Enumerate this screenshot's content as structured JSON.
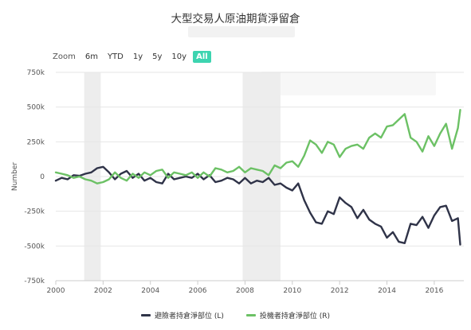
{
  "chart_data": {
    "type": "line",
    "title": "大型交易人原油期貨淨留倉",
    "xlabel": "",
    "ylabel": "Number",
    "xlim": [
      2000,
      2017.25
    ],
    "x_ticks": [
      "2000",
      "2002",
      "2004",
      "2006",
      "2008",
      "2010",
      "2012",
      "2014",
      "2016"
    ],
    "y_ticks": [
      "750k",
      "500k",
      "250k",
      "0",
      "-250k",
      "-500k",
      "-750k"
    ],
    "ylim": [
      -750000,
      750000
    ],
    "grid": true,
    "legend_position": "bottom-center",
    "shaded_periods": [
      [
        2001.2,
        2001.9
      ],
      [
        2007.9,
        2009.5
      ]
    ],
    "series": [
      {
        "name": "避險者持倉淨部位 (L)",
        "color": "#2f3348",
        "x": [
          2000,
          2000.25,
          2000.5,
          2000.75,
          2001,
          2001.25,
          2001.5,
          2001.75,
          2002,
          2002.25,
          2002.5,
          2002.75,
          2003,
          2003.25,
          2003.5,
          2003.75,
          2004,
          2004.25,
          2004.5,
          2004.75,
          2005,
          2005.25,
          2005.5,
          2005.75,
          2006,
          2006.25,
          2006.5,
          2006.75,
          2007,
          2007.25,
          2007.5,
          2007.75,
          2008,
          2008.25,
          2008.5,
          2008.75,
          2009,
          2009.25,
          2009.5,
          2009.75,
          2010,
          2010.25,
          2010.5,
          2010.75,
          2011,
          2011.25,
          2011.5,
          2011.75,
          2012,
          2012.25,
          2012.5,
          2012.75,
          2013,
          2013.25,
          2013.5,
          2013.75,
          2014,
          2014.25,
          2014.5,
          2014.75,
          2015,
          2015.25,
          2015.5,
          2015.75,
          2016,
          2016.25,
          2016.5,
          2016.75,
          2017,
          2017.1
        ],
        "values": [
          -30000,
          -10000,
          -20000,
          10000,
          5000,
          20000,
          30000,
          60000,
          70000,
          30000,
          -20000,
          20000,
          40000,
          -10000,
          20000,
          -30000,
          -10000,
          -40000,
          -50000,
          20000,
          -20000,
          -10000,
          0,
          -10000,
          20000,
          -20000,
          10000,
          -40000,
          -30000,
          -10000,
          -20000,
          -50000,
          -10000,
          -50000,
          -30000,
          -40000,
          -10000,
          -60000,
          -50000,
          -80000,
          -100000,
          -50000,
          -170000,
          -260000,
          -330000,
          -340000,
          -250000,
          -270000,
          -150000,
          -190000,
          -220000,
          -300000,
          -240000,
          -310000,
          -340000,
          -360000,
          -440000,
          -400000,
          -470000,
          -480000,
          -340000,
          -350000,
          -290000,
          -370000,
          -280000,
          -220000,
          -210000,
          -320000,
          -300000,
          -490000
        ]
      },
      {
        "name": "投機者持倉淨部位 (R)",
        "color": "#6cc165",
        "x": [
          2000,
          2000.25,
          2000.5,
          2000.75,
          2001,
          2001.25,
          2001.5,
          2001.75,
          2002,
          2002.25,
          2002.5,
          2002.75,
          2003,
          2003.25,
          2003.5,
          2003.75,
          2004,
          2004.25,
          2004.5,
          2004.75,
          2005,
          2005.25,
          2005.5,
          2005.75,
          2006,
          2006.25,
          2006.5,
          2006.75,
          2007,
          2007.25,
          2007.5,
          2007.75,
          2008,
          2008.25,
          2008.5,
          2008.75,
          2009,
          2009.25,
          2009.5,
          2009.75,
          2010,
          2010.25,
          2010.5,
          2010.75,
          2011,
          2011.25,
          2011.5,
          2011.75,
          2012,
          2012.25,
          2012.5,
          2012.75,
          2013,
          2013.25,
          2013.5,
          2013.75,
          2014,
          2014.25,
          2014.5,
          2014.75,
          2015,
          2015.25,
          2015.5,
          2015.75,
          2016,
          2016.25,
          2016.5,
          2016.75,
          2017,
          2017.1
        ],
        "values": [
          30000,
          20000,
          10000,
          -10000,
          0,
          -20000,
          -30000,
          -50000,
          -40000,
          -20000,
          30000,
          -10000,
          -30000,
          20000,
          -10000,
          30000,
          10000,
          40000,
          50000,
          -10000,
          30000,
          20000,
          10000,
          30000,
          -10000,
          30000,
          0,
          60000,
          50000,
          30000,
          40000,
          70000,
          30000,
          60000,
          50000,
          40000,
          10000,
          80000,
          60000,
          100000,
          110000,
          70000,
          150000,
          260000,
          230000,
          170000,
          250000,
          230000,
          140000,
          200000,
          220000,
          230000,
          200000,
          280000,
          310000,
          280000,
          360000,
          370000,
          410000,
          450000,
          280000,
          250000,
          180000,
          290000,
          220000,
          310000,
          380000,
          200000,
          350000,
          480000
        ]
      }
    ]
  },
  "zoom": {
    "label": "Zoom",
    "buttons": [
      "6m",
      "YTD",
      "1y",
      "5y",
      "10y",
      "All"
    ],
    "active": "All"
  }
}
